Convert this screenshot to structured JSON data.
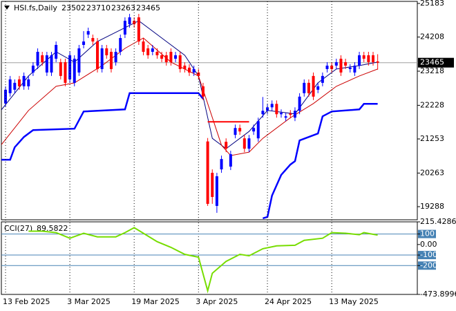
{
  "chart_data": [
    {
      "type": "candlestick",
      "title": "HSI.fs,Daily",
      "categories": [
        "13 Feb 2025",
        null,
        null,
        null,
        null,
        null,
        null,
        null,
        null,
        null,
        null,
        null,
        null,
        null,
        "3 Mar 2025",
        null,
        null,
        null,
        null,
        null,
        null,
        null,
        null,
        null,
        null,
        null,
        null,
        null,
        "19 Mar 2025",
        null,
        null,
        null,
        null,
        null,
        null,
        null,
        null,
        null,
        null,
        null,
        null,
        null,
        "3 Apr 2025",
        null,
        null,
        null,
        null,
        null,
        null,
        null,
        null,
        null,
        null,
        null,
        null,
        null,
        null,
        "24 Apr 2025",
        null,
        null,
        null,
        null,
        null,
        null,
        null,
        null,
        null,
        null,
        null,
        null,
        null,
        "13 May 2025",
        null,
        null,
        null,
        null,
        null,
        null,
        null,
        null,
        null,
        null
      ],
      "open": [
        22280,
        22580,
        22680,
        22980,
        22780,
        22780,
        23180,
        23380,
        23680,
        23180,
        23180,
        23580,
        23480,
        23480,
        22980,
        22880,
        23180,
        23980,
        24280,
        24180,
        24080,
        23280,
        23880,
        23780,
        23480,
        23780,
        24280,
        24580,
        24680,
        24780,
        24080,
        23880,
        23780,
        23780,
        23680,
        23680,
        23780,
        23580,
        23680,
        23380,
        23320,
        23180,
        23180,
        22780,
        21180,
        20270,
        19310,
        20370,
        21170,
        20450,
        21370,
        21570,
        21270,
        20970,
        21470,
        21270,
        21970,
        22070,
        22170,
        22270,
        21970,
        21870,
        21990,
        21870,
        22070,
        22580,
        22880,
        23080,
        22680,
        22880,
        23280,
        23380,
        23380,
        23580,
        23480,
        23280,
        23180,
        23380,
        23680,
        23680,
        23680,
        23502
      ],
      "high": [
        22780,
        23080,
        22980,
        23080,
        23180,
        23080,
        23480,
        23880,
        23780,
        23780,
        23780,
        24080,
        23580,
        23580,
        23780,
        23680,
        23980,
        24380,
        24480,
        24280,
        24180,
        23980,
        23980,
        23880,
        23880,
        24280,
        24780,
        24880,
        24780,
        24880,
        24180,
        23980,
        23980,
        23880,
        23780,
        23780,
        23880,
        23780,
        23780,
        23480,
        23420,
        23380,
        23280,
        22880,
        21280,
        20370,
        20270,
        20770,
        21270,
        20910,
        21670,
        21670,
        21370,
        21370,
        21670,
        21870,
        22470,
        22270,
        22370,
        22370,
        22110,
        22010,
        22090,
        22170,
        22580,
        22980,
        22980,
        23180,
        22880,
        23180,
        23480,
        23480,
        23580,
        23680,
        23580,
        23420,
        23480,
        23780,
        23780,
        23780,
        23780,
        23710
      ],
      "low": [
        22180,
        22480,
        22580,
        22680,
        22680,
        22680,
        23080,
        23280,
        23380,
        23080,
        23080,
        23480,
        22980,
        22780,
        22880,
        22780,
        23080,
        23880,
        24180,
        23980,
        23180,
        23180,
        23580,
        23180,
        23380,
        23680,
        24180,
        24480,
        24480,
        23980,
        23680,
        23580,
        23680,
        23580,
        23480,
        23380,
        23380,
        23480,
        23180,
        23180,
        23080,
        23080,
        22980,
        22380,
        19310,
        19370,
        19110,
        20270,
        20870,
        20350,
        21270,
        21370,
        20870,
        20870,
        21370,
        21170,
        21870,
        21970,
        22070,
        21870,
        21870,
        21770,
        21850,
        21770,
        21970,
        22480,
        22480,
        22380,
        22580,
        22780,
        23180,
        23180,
        23280,
        23080,
        23280,
        23180,
        23080,
        23280,
        23480,
        23380,
        23380,
        23263
      ],
      "close": [
        22680,
        22980,
        22880,
        22780,
        23080,
        22980,
        23380,
        23780,
        23480,
        23680,
        23680,
        23980,
        23080,
        22880,
        23680,
        23580,
        23880,
        24080,
        24380,
        24080,
        23280,
        23880,
        23680,
        23280,
        23780,
        24180,
        24680,
        24780,
        24580,
        24080,
        23780,
        23680,
        23880,
        23680,
        23580,
        23480,
        23480,
        23680,
        23280,
        23280,
        23180,
        23280,
        23080,
        22480,
        19370,
        19570,
        20170,
        20670,
        20970,
        20810,
        21570,
        21470,
        20970,
        21270,
        21570,
        21770,
        22070,
        22170,
        22270,
        21970,
        22010,
        21910,
        21950,
        22070,
        22480,
        22880,
        22580,
        22480,
        22780,
        23080,
        23380,
        23280,
        23480,
        23180,
        23380,
        23320,
        23380,
        23680,
        23580,
        23480,
        23480,
        23465
      ],
      "up_color": "#0000ff",
      "down_color": "#ff0000",
      "overlays": [
        {
          "color": "#000080",
          "line_width": 1,
          "x": [
            -1,
            5,
            11,
            15,
            20,
            26,
            29,
            35,
            39,
            42,
            45,
            48,
            53,
            57,
            63,
            68,
            72,
            77,
            81
          ],
          "values": [
            22080,
            23080,
            23780,
            23480,
            24080,
            24480,
            24680,
            24080,
            23680,
            23080,
            21270,
            20970,
            21470,
            22080,
            21980,
            22880,
            23280,
            23380,
            23480
          ]
        },
        {
          "color": "#cc0000",
          "line_width": 1,
          "x": [
            -1,
            5,
            11,
            15,
            21,
            26,
            30,
            36,
            42,
            44,
            47,
            49,
            53,
            56,
            62,
            67,
            72,
            77,
            81
          ],
          "values": [
            21070,
            22080,
            22780,
            22880,
            23380,
            23880,
            24180,
            23480,
            23080,
            22280,
            21070,
            20770,
            20870,
            21270,
            21870,
            22280,
            22780,
            23080,
            23280
          ]
        },
        {
          "color": "#0000ff",
          "line_width": 2.5,
          "x": [
            -1,
            1,
            2,
            4,
            6,
            15,
            17,
            26,
            27,
            42,
            43,
            44,
            56,
            57,
            58,
            60,
            62,
            63,
            64,
            68,
            69,
            71,
            77,
            78,
            81
          ],
          "values": [
            20650,
            20650,
            21010,
            21310,
            21510,
            21550,
            22050,
            22110,
            22580,
            22580,
            22420,
            null,
            18950,
            18990,
            19610,
            20210,
            20510,
            20610,
            21210,
            21410,
            21910,
            22050,
            22110,
            22270,
            22270
          ]
        },
        {
          "color": "#ff0000",
          "line_width": 2,
          "x": [
            44,
            53
          ],
          "values": [
            21750,
            21750
          ]
        }
      ],
      "price_line_color": "#a0a0a0",
      "ylim": [
        18908,
        25243
      ],
      "yticks": [
        25183,
        24208,
        23218,
        22228,
        21253,
        20263,
        19288
      ],
      "grid": true
    },
    {
      "type": "line",
      "title": "CCI(27)",
      "series": [
        {
          "color": "#77dd00",
          "x": [
            5,
            8,
            11,
            14,
            17,
            20,
            24,
            26,
            28,
            30,
            33,
            36,
            39,
            42,
            44,
            45,
            48,
            51,
            53,
            56,
            59,
            63,
            65,
            69,
            71,
            74,
            77,
            78,
            81
          ],
          "values": [
            127,
            127,
            113,
            60,
            107,
            73,
            73,
            113,
            160,
            107,
            27,
            -27,
            -93,
            -120,
            -440,
            -273,
            -160,
            -93,
            -107,
            -40,
            -13,
            -7,
            40,
            60,
            113,
            107,
            93,
            113,
            89.5822
          ]
        }
      ],
      "ylim": [
        -473.8996,
        215.4286
      ],
      "yticks": [
        215.4286,
        100,
        {
          "value": 0,
          "label": "0.00"
        },
        -100,
        -200,
        -473.8996
      ],
      "levels": [
        100,
        -100,
        -200
      ],
      "level_color": "#4682b4"
    }
  ]
}
